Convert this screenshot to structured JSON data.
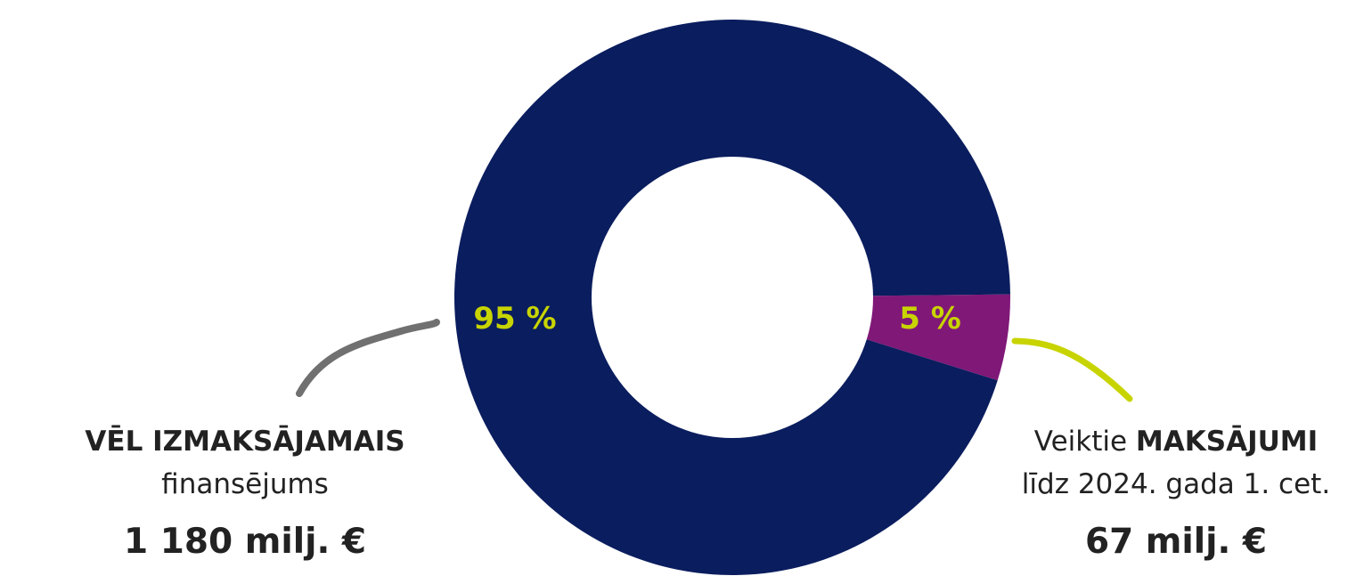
{
  "chart_data": {
    "type": "pie",
    "slices": [
      {
        "name": "VĒL IZMAKSĀJAMAIS finansējums",
        "value": 95,
        "label": "95 %",
        "color": "#0a1d5e"
      },
      {
        "name": "Veiktie MAKSĀJUMI līdz 2024. gada 1. cet.",
        "value": 5,
        "label": "5 %",
        "color": "#801878"
      }
    ],
    "label_color": "#c8d400",
    "donut": true
  },
  "callouts": {
    "left": {
      "heading": "VĒL IZMAKSĀJAMAIS",
      "subtext": "finansējums",
      "amount": "1 180 milj. €",
      "line_color": "#707070"
    },
    "right": {
      "text_prefix": "Veiktie",
      "text_bold": "MAKSĀJUMI",
      "subtext": "līdz 2024. gada 1. cet.",
      "amount": "67 milj. €",
      "line_color": "#c8d400"
    }
  }
}
